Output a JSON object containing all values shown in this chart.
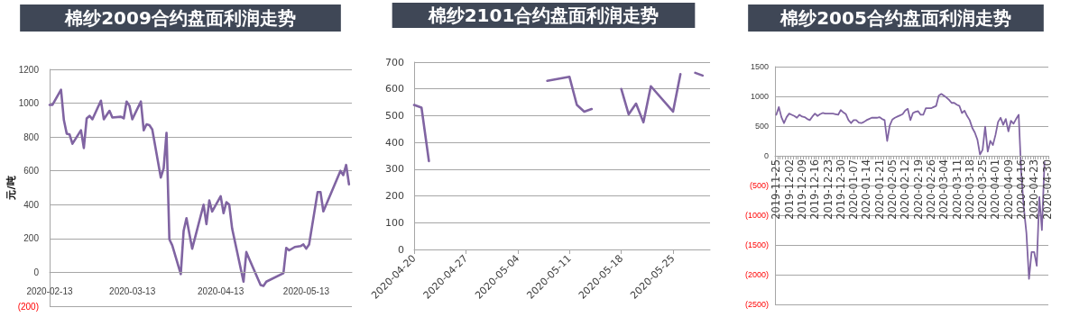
{
  "chart_data": [
    {
      "type": "line",
      "title": "棉纱2009合约盘面利润走势",
      "ylabel": "元/吨",
      "color": "#8064a2",
      "marker": "none",
      "grid": "y",
      "x": [
        "2020-02-13",
        "2020-02-14",
        "2020-02-17",
        "2020-02-18",
        "2020-02-19",
        "2020-02-20",
        "2020-02-21",
        "2020-02-24",
        "2020-02-25",
        "2020-02-26",
        "2020-02-27",
        "2020-02-28",
        "2020-03-02",
        "2020-03-03",
        "2020-03-05",
        "2020-03-06",
        "2020-03-09",
        "2020-03-10",
        "2020-03-11",
        "2020-03-12",
        "2020-03-13",
        "2020-03-16",
        "2020-03-17",
        "2020-03-18",
        "2020-03-19",
        "2020-03-20",
        "2020-03-23",
        "2020-03-24",
        "2020-03-25",
        "2020-03-26",
        "2020-03-27",
        "2020-03-30",
        "2020-03-31",
        "2020-04-01",
        "2020-04-03",
        "2020-04-07",
        "2020-04-08",
        "2020-04-09",
        "2020-04-10",
        "2020-04-13",
        "2020-04-14",
        "2020-04-15",
        "2020-04-16",
        "2020-04-17",
        "2020-04-21",
        "2020-04-22",
        "2020-04-23",
        "2020-04-27",
        "2020-04-28",
        "2020-04-29",
        "2020-05-05",
        "2020-05-06",
        "2020-05-07",
        "2020-05-09",
        "2020-05-11",
        "2020-05-12",
        "2020-05-13",
        "2020-05-14",
        "2020-05-17",
        "2020-05-18",
        "2020-05-19",
        "2020-05-25",
        "2020-05-26",
        "2020-05-27",
        "2020-05-28"
      ],
      "values": [
        990,
        990,
        1080,
        900,
        820,
        815,
        760,
        840,
        735,
        910,
        925,
        905,
        1015,
        905,
        955,
        915,
        920,
        910,
        1010,
        985,
        905,
        1010,
        840,
        875,
        870,
        845,
        560,
        615,
        825,
        195,
        160,
        -10,
        245,
        320,
        140,
        400,
        285,
        425,
        360,
        450,
        350,
        415,
        400,
        260,
        -55,
        120,
        80,
        -75,
        -80,
        -55,
        -5,
        145,
        130,
        150,
        155,
        165,
        140,
        165,
        475,
        475,
        360,
        600,
        575,
        635,
        520
      ],
      "xlim": [
        "2020-02-13",
        "2020-05-29"
      ],
      "xticks": [
        "2020-02-13",
        "2020-03-13",
        "2020-04-13",
        "2020-05-13"
      ],
      "ylim": [
        -200,
        1200
      ],
      "yticks": [
        {
          "value": -200,
          "label": "(200)"
        },
        0,
        200,
        400,
        600,
        800,
        1000,
        1200
      ]
    },
    {
      "type": "line",
      "title": "棉纱2101合约盘面利润走势",
      "color": "#8064a2",
      "marker": "none",
      "grid": "y",
      "x": [
        "2020-04-20",
        "2020-04-21",
        "2020-04-22",
        "2020-04-23",
        "2020-05-08",
        "2020-05-11",
        "2020-05-12",
        "2020-05-13",
        "2020-05-14",
        "2020-05-15",
        "2020-05-18",
        "2020-05-19",
        "2020-05-20",
        "2020-05-21",
        "2020-05-22",
        "2020-05-25",
        "2020-05-26",
        "2020-05-27",
        "2020-05-28",
        "2020-05-29"
      ],
      "values": [
        540,
        530,
        330,
        null,
        630,
        645,
        540,
        515,
        525,
        null,
        600,
        505,
        545,
        475,
        610,
        515,
        655,
        null,
        660,
        650
      ],
      "xlim": [
        "2020-04-20",
        "2020-05-30"
      ],
      "xticks": [
        "2020-04-20",
        "2020-04-27",
        "2020-05-04",
        "2020-05-11",
        "2020-05-18",
        "2020-05-25"
      ],
      "ylim": [
        0,
        700
      ],
      "yticks": [
        0,
        100,
        200,
        300,
        400,
        500,
        600,
        700
      ]
    },
    {
      "type": "line",
      "title": "棉纱2005合约盘面利润走势",
      "color": "#8064a2",
      "marker": "none",
      "grid": "y",
      "categories": [
        "2019-11-25",
        null,
        null,
        null,
        null,
        "2019-12-02",
        null,
        null,
        null,
        null,
        "2019-12-09",
        null,
        null,
        null,
        null,
        "2019-12-16",
        null,
        null,
        null,
        null,
        "2019-12-23",
        null,
        null,
        null,
        null,
        "2019-12-30",
        null,
        null,
        null,
        null,
        "2020-01-07",
        null,
        null,
        null,
        null,
        "2020-01-14",
        null,
        null,
        null,
        null,
        "2020-01-21",
        null,
        null,
        null,
        null,
        "2020-02-05",
        null,
        null,
        null,
        null,
        "2020-02-12",
        null,
        null,
        null,
        null,
        "2020-02-19",
        null,
        null,
        null,
        null,
        "2020-02-26",
        null,
        null,
        null,
        null,
        "2020-03-04",
        null,
        null,
        null,
        null,
        "2020-03-11",
        null,
        null,
        null,
        null,
        "2020-03-18",
        null,
        null,
        null,
        null,
        "2020-03-25",
        null,
        null,
        null,
        null,
        "2020-04-01",
        null,
        null,
        null,
        null,
        "2020-04-09",
        null,
        null,
        null,
        null,
        "2020-04-16",
        null,
        null,
        null,
        null,
        "2020-04-23",
        null,
        null,
        null,
        null,
        "2020-04-30"
      ],
      "values": [
        690,
        820,
        650,
        550,
        650,
        710,
        690,
        670,
        640,
        690,
        660,
        650,
        620,
        600,
        660,
        710,
        670,
        700,
        720,
        710,
        710,
        710,
        710,
        700,
        690,
        770,
        730,
        700,
        600,
        550,
        600,
        600,
        560,
        550,
        570,
        600,
        620,
        640,
        640,
        640,
        650,
        620,
        600,
        250,
        510,
        610,
        640,
        660,
        680,
        700,
        760,
        790,
        600,
        720,
        740,
        750,
        690,
        690,
        800,
        800,
        800,
        820,
        840,
        1010,
        1040,
        1010,
        980,
        940,
        890,
        890,
        860,
        840,
        720,
        760,
        670,
        600,
        470,
        390,
        270,
        20,
        100,
        490,
        70,
        250,
        180,
        350,
        570,
        640,
        520,
        620,
        410,
        590,
        540,
        620,
        690,
        -300,
        -880,
        -1300,
        -2070,
        -1620,
        -1620,
        -1850,
        -690,
        -1250,
        -110,
        null
      ],
      "ylim": [
        -2500,
        1500
      ],
      "yticks": [
        {
          "value": -2500,
          "label": "(2500)"
        },
        {
          "value": -2000,
          "label": "(2000)"
        },
        {
          "value": -1500,
          "label": "(1500)"
        },
        {
          "value": -1000,
          "label": "(1000)"
        },
        {
          "value": -500,
          "label": "(500)"
        },
        0,
        500,
        1000,
        1500
      ]
    }
  ]
}
